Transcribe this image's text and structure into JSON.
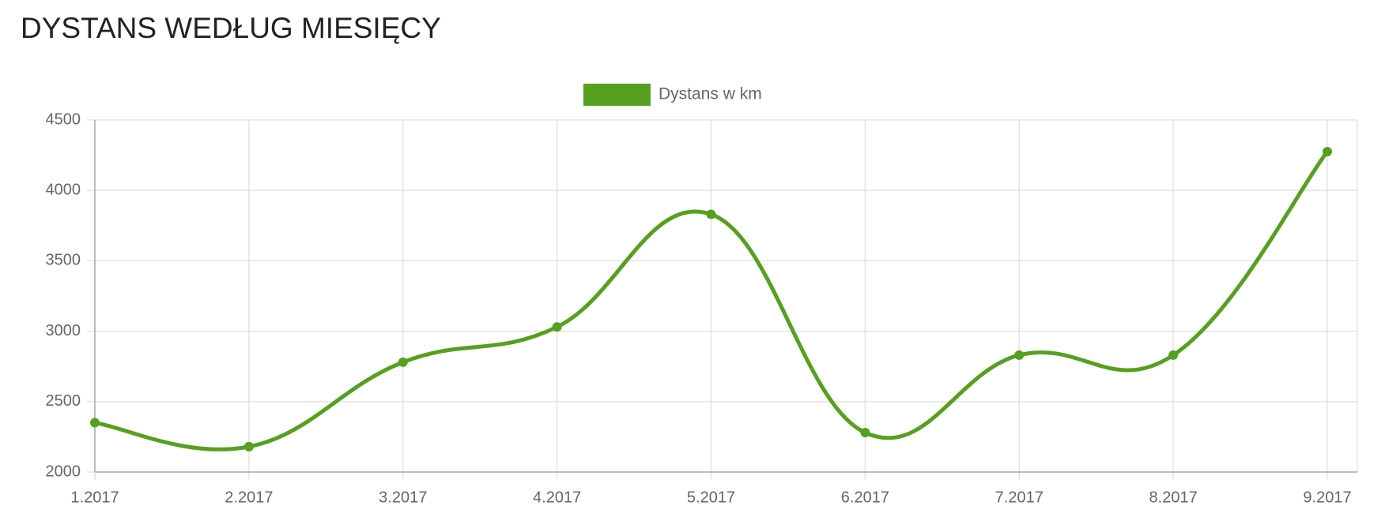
{
  "chart_data": {
    "type": "line",
    "title": "DYSTANS WEDŁUG MIESIĘCY",
    "categories": [
      "1.2017",
      "2.2017",
      "3.2017",
      "4.2017",
      "5.2017",
      "6.2017",
      "7.2017",
      "8.2017",
      "9.2017"
    ],
    "series": [
      {
        "name": "Dystans w km",
        "color": "#56a020",
        "values": [
          2350,
          2180,
          2780,
          3030,
          3830,
          2280,
          2830,
          2830,
          4275
        ]
      }
    ],
    "ylim": [
      2000,
      4500
    ],
    "yticks": [
      2000,
      2500,
      3000,
      3500,
      4000,
      4500
    ],
    "grid": true,
    "legend": "top"
  }
}
